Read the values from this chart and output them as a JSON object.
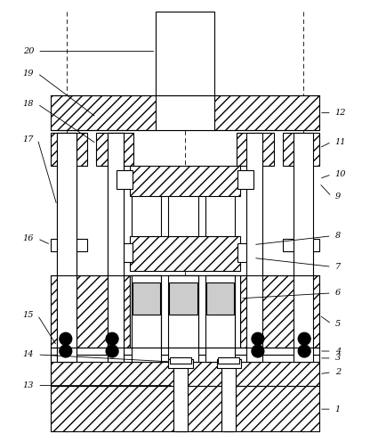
{
  "bg_color": "#ffffff",
  "figsize": [
    4.16,
    4.96
  ],
  "dpi": 100
}
